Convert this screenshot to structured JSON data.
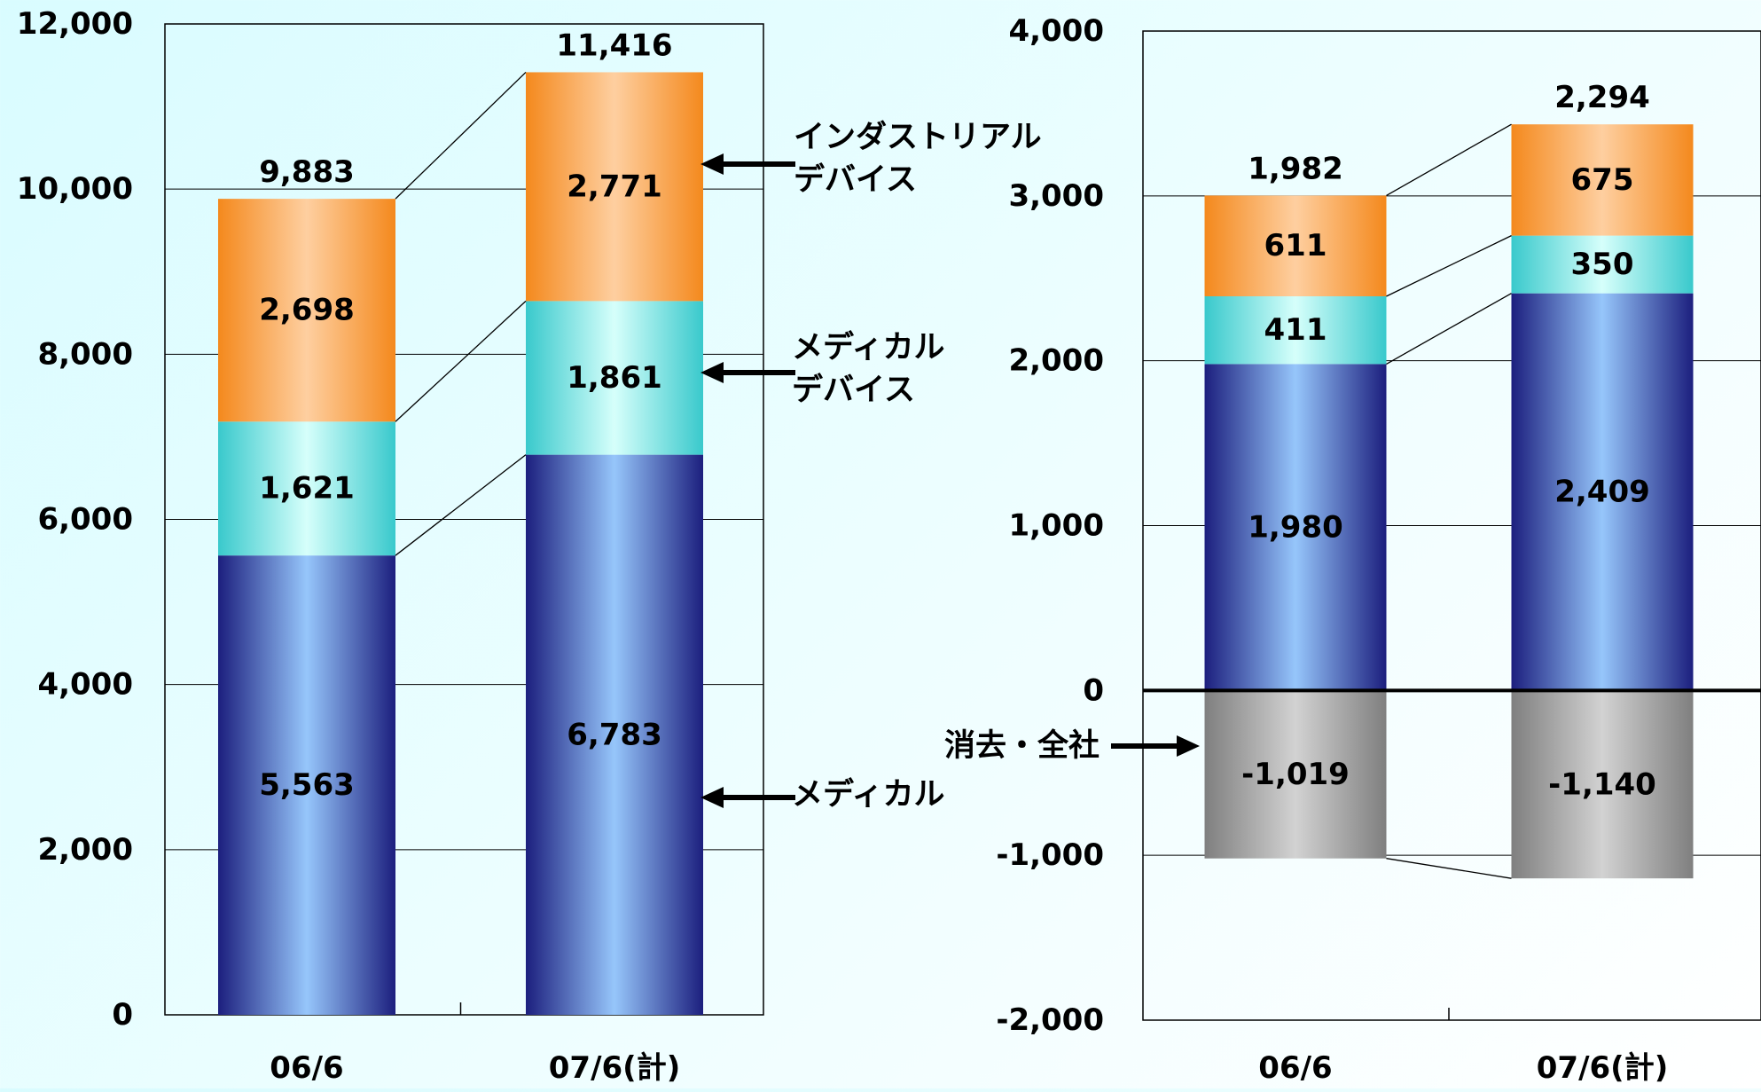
{
  "chart_data": [
    {
      "type": "bar",
      "stacked": true,
      "categories": [
        "06/6",
        "07/6(計)"
      ],
      "series": [
        {
          "name": "メディカル",
          "values": [
            5563,
            6783
          ],
          "color": "#5a80e0"
        },
        {
          "name": "メディカル デバイス",
          "values": [
            1621,
            1861
          ],
          "color": "#6fe0e0"
        },
        {
          "name": "インダストリアル デバイス",
          "values": [
            2698,
            2771
          ],
          "color": "#f79a3a"
        }
      ],
      "totals": [
        9883,
        11416
      ],
      "total_labels": [
        "9,883",
        "11,416"
      ],
      "value_labels": [
        [
          "5,563",
          "6,783"
        ],
        [
          "1,621",
          "1,861"
        ],
        [
          "2,698",
          "2,771"
        ]
      ],
      "legend_annotations": [
        {
          "series": 2,
          "lines": [
            "インダストリアル",
            "デバイス"
          ]
        },
        {
          "series": 1,
          "lines": [
            "メディカル",
            "デバイス"
          ]
        },
        {
          "series": 0,
          "lines": [
            "メディカル"
          ]
        }
      ],
      "ylim": [
        0,
        12000
      ],
      "yticks": [
        0,
        2000,
        4000,
        6000,
        8000,
        10000,
        12000
      ],
      "ytick_labels": [
        "0",
        "2,000",
        "4,000",
        "6,000",
        "8,000",
        "10,000",
        "12,000"
      ],
      "grid": true,
      "title": "",
      "xlabel": "",
      "ylabel": ""
    },
    {
      "type": "bar",
      "stacked": true,
      "categories": [
        "06/6",
        "07/6(計)"
      ],
      "series": [
        {
          "name": "メディカル",
          "values": [
            1980,
            2409
          ],
          "color": "#5a80e0"
        },
        {
          "name": "メディカル デバイス",
          "values": [
            411,
            350
          ],
          "color": "#6fe0e0"
        },
        {
          "name": "インダストリアル デバイス",
          "values": [
            611,
            675
          ],
          "color": "#f79a3a"
        },
        {
          "name": "消去・全社",
          "values": [
            -1019,
            -1140
          ],
          "color": "#a8a8a8"
        }
      ],
      "totals": [
        1982,
        2294
      ],
      "total_labels": [
        "1,982",
        "2,294"
      ],
      "value_labels": [
        [
          "1,980",
          "2,409"
        ],
        [
          "411",
          "350"
        ],
        [
          "611",
          "675"
        ],
        [
          "-1,019",
          "-1,140"
        ]
      ],
      "legend_annotations": [
        {
          "series": 3,
          "lines": [
            "消去・全社"
          ]
        }
      ],
      "ylim": [
        -2000,
        4000
      ],
      "yticks": [
        -2000,
        -1000,
        0,
        1000,
        2000,
        3000,
        4000
      ],
      "ytick_labels": [
        "-2,000",
        "-1,000",
        "0",
        "1,000",
        "2,000",
        "3,000",
        "4,000"
      ],
      "grid": true,
      "title": "",
      "xlabel": "",
      "ylabel": ""
    }
  ]
}
